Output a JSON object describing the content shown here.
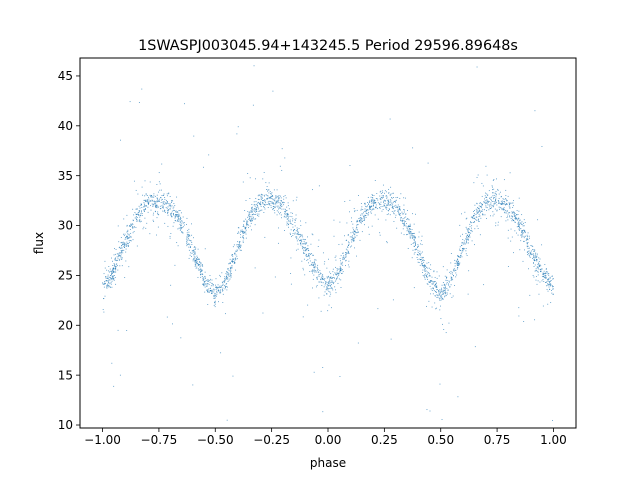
{
  "chart_data": {
    "type": "scatter",
    "title": "1SWASPJ003045.94+143245.5 Period 29596.89648s",
    "xlabel": "phase",
    "ylabel": "flux",
    "xlim": [
      -1.1,
      1.1
    ],
    "ylim": [
      9.7,
      46.8
    ],
    "xticks": [
      -1.0,
      -0.75,
      -0.5,
      -0.25,
      0.0,
      0.25,
      0.5,
      0.75,
      1.0
    ],
    "xtick_labels": [
      "−1.00",
      "−0.75",
      "−0.50",
      "−0.25",
      "0.00",
      "0.25",
      "0.50",
      "0.75",
      "1.00"
    ],
    "yticks": [
      10,
      15,
      20,
      25,
      30,
      35,
      40,
      45
    ],
    "ytick_labels": [
      "10",
      "15",
      "20",
      "25",
      "30",
      "35",
      "40",
      "45"
    ],
    "grid": false,
    "legend": "none",
    "point_color": "#1f77b4",
    "series": [
      {
        "x": [
          -1.0,
          -0.95,
          -0.9,
          -0.85,
          -0.8,
          -0.75,
          -0.7,
          -0.65,
          -0.6,
          -0.55,
          -0.5,
          -0.45,
          -0.4,
          -0.35,
          -0.3,
          -0.25,
          -0.2,
          -0.15,
          -0.1,
          -0.05,
          0.0,
          0.05,
          0.1,
          0.15,
          0.2,
          0.25,
          0.3,
          0.35,
          0.4,
          0.45,
          0.5,
          0.55,
          0.6,
          0.65,
          0.7,
          0.75,
          0.8,
          0.85,
          0.9,
          0.95,
          1.0
        ],
        "y": [
          23.8,
          25.5,
          28.3,
          30.8,
          32.2,
          32.5,
          32.0,
          30.3,
          27.5,
          24.6,
          23.0,
          24.6,
          27.8,
          30.9,
          32.3,
          32.5,
          31.8,
          30.0,
          27.5,
          25.2,
          23.8,
          25.5,
          28.3,
          30.8,
          32.2,
          32.5,
          32.0,
          30.3,
          27.5,
          24.6,
          23.0,
          24.6,
          27.8,
          30.9,
          32.3,
          32.5,
          31.8,
          30.0,
          27.5,
          25.2,
          23.8
        ]
      }
    ]
  }
}
